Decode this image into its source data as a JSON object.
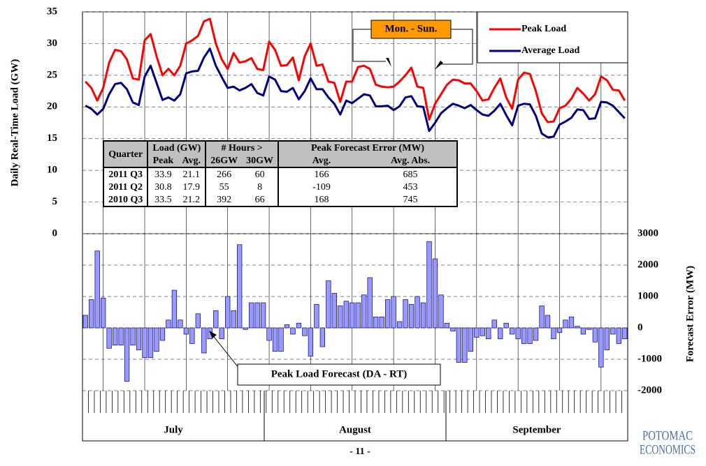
{
  "chart_data": {
    "type": "combo",
    "ylabel": "Daily Real-Time Load (GW)",
    "y2label": "Forecast Error (MW)",
    "ylim": [
      0,
      35
    ],
    "yticks": [
      0,
      5,
      10,
      15,
      20,
      25,
      30,
      35
    ],
    "y2lim": [
      -2000,
      3000
    ],
    "y2ticks": [
      -2000,
      -1000,
      0,
      1000,
      2000,
      3000
    ],
    "grid": true,
    "legend": "upper right",
    "month_labels": [
      "July",
      "August",
      "September"
    ],
    "series": [
      {
        "name": "Peak Load",
        "type": "line",
        "color": "#ff0000",
        "values": [
          24,
          23,
          21,
          23,
          27,
          29,
          28.8,
          27.5,
          24.5,
          24.3,
          30.5,
          31.5,
          28,
          25,
          26,
          25,
          26.5,
          30,
          30.5,
          31.2,
          33.5,
          33.9,
          30,
          27.5,
          26,
          28.5,
          27,
          27.2,
          27.7,
          26,
          25.8,
          30.3,
          29,
          26.5,
          26.6,
          27.8,
          24.2,
          28,
          30,
          26.5,
          26.7,
          24,
          23.8,
          20.8,
          24,
          24,
          26.3,
          26.5,
          26,
          23.5,
          23.2,
          23.1,
          23.2,
          24,
          25,
          26.2,
          23.2,
          23,
          18,
          20.5,
          22,
          23.5,
          24.3,
          24.2,
          23.7,
          23.7,
          22.5,
          21,
          21.2,
          23,
          24.5,
          21.5,
          19.7,
          24.3,
          25.4,
          25.2,
          22.5,
          19,
          17.6,
          17.7,
          19.8,
          20.2,
          21.3,
          23,
          22.1,
          21,
          22,
          24.8,
          24.2,
          22.7,
          22.6,
          21
        ]
      },
      {
        "name": "Average Load",
        "type": "line",
        "color": "#000080",
        "values": [
          20.2,
          19.7,
          18.8,
          19.7,
          22,
          23.6,
          23.8,
          22.8,
          20.7,
          20.3,
          24.8,
          26.5,
          23.8,
          21.1,
          21.5,
          21,
          22,
          25.3,
          25.6,
          25.7,
          27.8,
          29.2,
          26.5,
          24.7,
          23,
          23.2,
          22.6,
          23,
          23.6,
          22.2,
          21.8,
          24.8,
          24.3,
          22.5,
          22.4,
          23,
          21.2,
          22.5,
          24.5,
          22.8,
          22.8,
          21.5,
          20.5,
          18.8,
          21,
          20.6,
          21.3,
          22,
          21.8,
          20.1,
          20.1,
          20.2,
          19.5,
          20.1,
          21.5,
          21.7,
          20.1,
          20,
          16.2,
          17.5,
          19,
          19.8,
          20.5,
          20.2,
          19.8,
          20.3,
          19.5,
          18.8,
          18.6,
          19.4,
          20.5,
          18.7,
          17.1,
          20.2,
          20.5,
          20.4,
          18.6,
          15.8,
          15.2,
          15.3,
          17.2,
          17.7,
          18.3,
          19.6,
          19.5,
          18.1,
          18.2,
          20.8,
          20.7,
          20.2,
          19.2,
          18.2
        ]
      },
      {
        "name": "Peak Load Forecast (DA - RT)",
        "type": "bar",
        "axis": "y2",
        "color": "#9999ff",
        "values": [
          400,
          900,
          2450,
          950,
          -650,
          -550,
          -550,
          -1700,
          -550,
          -700,
          -950,
          -950,
          -750,
          -400,
          250,
          1200,
          250,
          -200,
          -500,
          450,
          -800,
          -350,
          550,
          -350,
          1000,
          550,
          2650,
          -50,
          800,
          800,
          800,
          -400,
          -750,
          -750,
          100,
          -200,
          150,
          -250,
          -900,
          750,
          -600,
          1500,
          1100,
          700,
          850,
          800,
          800,
          1050,
          1600,
          350,
          350,
          900,
          1000,
          200,
          900,
          750,
          1000,
          800,
          2750,
          2200,
          1050,
          150,
          -100,
          -1100,
          -1100,
          -750,
          -300,
          -250,
          -350,
          250,
          -350,
          150,
          -200,
          -350,
          -500,
          -500,
          -400,
          700,
          400,
          -350,
          -150,
          250,
          350,
          50,
          -200,
          -50,
          -450,
          -1250,
          -700,
          -200,
          -500,
          -350
        ]
      }
    ],
    "annotation": "Mon. - Sun.",
    "table": {
      "header": [
        "Quarter",
        "Load (GW)",
        "# Hours >",
        "Peak Forecast Error (MW)"
      ],
      "subheader": [
        "Peak",
        "Avg.",
        "26GW",
        "30GW",
        "Avg.",
        "Avg. Abs."
      ],
      "rows": [
        [
          "2011 Q3",
          "33.9",
          "21.1",
          "266",
          "60",
          "166",
          "685"
        ],
        [
          "2011 Q2",
          "30.8",
          "17.9",
          "55",
          "8",
          "-109",
          "453"
        ],
        [
          "2010 Q3",
          "33.5",
          "21.2",
          "392",
          "66",
          "168",
          "745"
        ]
      ]
    }
  },
  "footer": {
    "page": "- 11 -",
    "logo": [
      "POTOMAC",
      "ECONOMICS"
    ]
  }
}
